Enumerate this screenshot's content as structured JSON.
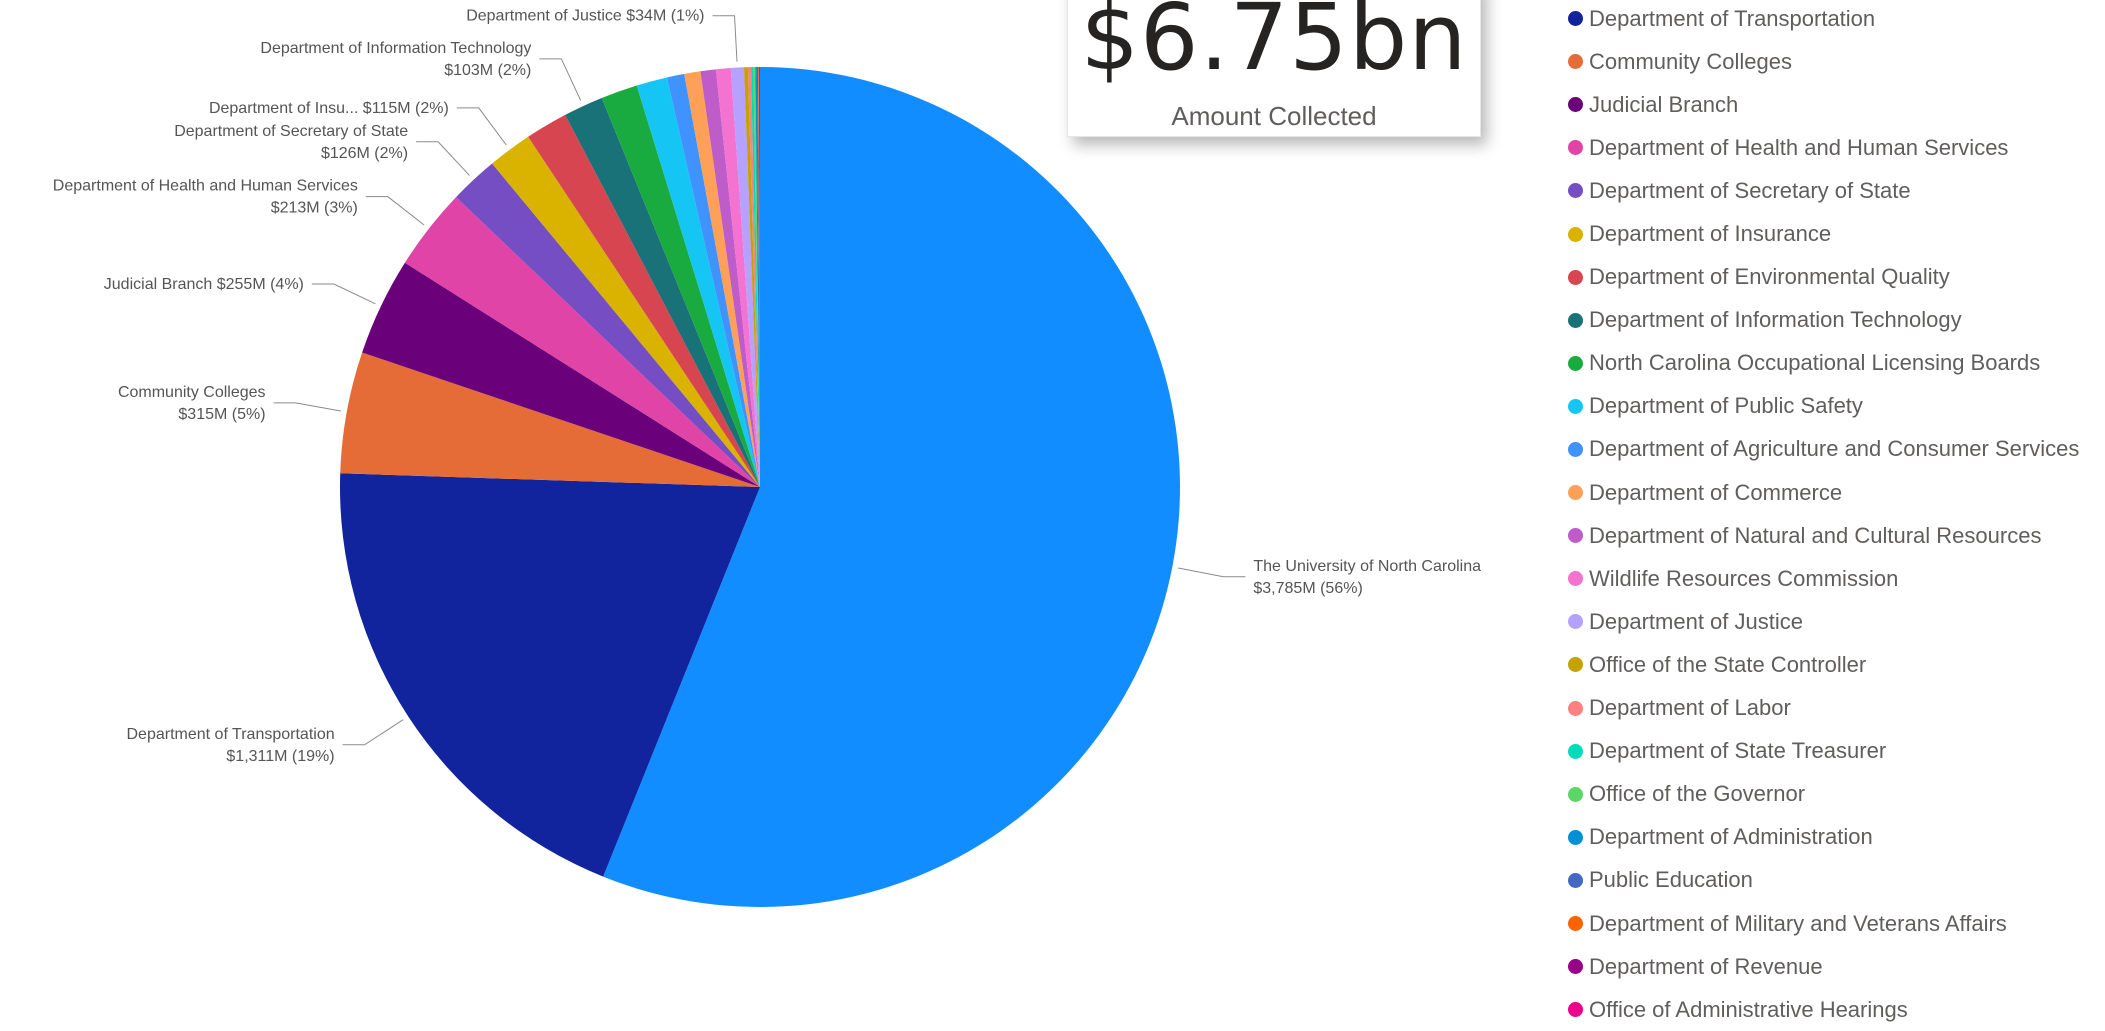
{
  "kpi": {
    "value": "$6.75bn",
    "label": "Amount Collected"
  },
  "legend": {
    "items": [
      {
        "label": "Department of Transportation",
        "color": "#12239E"
      },
      {
        "label": "Community Colleges",
        "color": "#E66C37"
      },
      {
        "label": "Judicial Branch",
        "color": "#6B007B"
      },
      {
        "label": "Department of Health and Human Services",
        "color": "#E044A7"
      },
      {
        "label": "Department of Secretary of State",
        "color": "#744EC2"
      },
      {
        "label": "Department of Insurance",
        "color": "#D9B300"
      },
      {
        "label": "Department of Environmental Quality",
        "color": "#D64550"
      },
      {
        "label": "Department of Information Technology",
        "color": "#197278"
      },
      {
        "label": "North Carolina Occupational Licensing Boards",
        "color": "#1AAB40"
      },
      {
        "label": "Department of Public Safety",
        "color": "#15C6F4"
      },
      {
        "label": "Department of Agriculture and Consumer Services",
        "color": "#4092FF"
      },
      {
        "label": "Department of Commerce",
        "color": "#FFA058"
      },
      {
        "label": "Department of Natural and Cultural Resources",
        "color": "#BE5DC9"
      },
      {
        "label": "Wildlife Resources Commission",
        "color": "#F472D0"
      },
      {
        "label": "Department of Justice",
        "color": "#B5A1FF"
      },
      {
        "label": "Office of the State Controller",
        "color": "#C4A200"
      },
      {
        "label": "Department of Labor",
        "color": "#FF8080"
      },
      {
        "label": "Department of State Treasurer",
        "color": "#00DBBC"
      },
      {
        "label": "Office of the Governor",
        "color": "#5BD667"
      },
      {
        "label": "Department of Administration",
        "color": "#0091D5"
      },
      {
        "label": "Public Education",
        "color": "#4668C5"
      },
      {
        "label": "Department of Military and Veterans Affairs",
        "color": "#FF6300"
      },
      {
        "label": "Department of Revenue",
        "color": "#99008A"
      },
      {
        "label": "Office of Administrative Hearings",
        "color": "#EC008C"
      }
    ]
  },
  "chart_data": {
    "type": "pie",
    "categories": [
      "The University of North Carolina",
      "Department of Transportation",
      "Community Colleges",
      "Judicial Branch",
      "Department of Health and Human Services",
      "Department of Secretary of State",
      "Department of Insurance",
      "Department of Environmental Quality",
      "Department of Information Technology",
      "North Carolina Occupational Licensing Boards",
      "Department of Public Safety",
      "Department of Agriculture and Consumer Services",
      "Department of Commerce",
      "Department of Natural and Cultural Resources",
      "Wildlife Resources Commission",
      "Department of Justice",
      "Office of the State Controller",
      "Department of Labor",
      "Department of State Treasurer",
      "Office of the Governor",
      "Department of Administration",
      "Public Education",
      "Department of Military and Veterans Affairs",
      "Department of Revenue",
      "Office of Administrative Hearings"
    ],
    "values": [
      3785,
      1311,
      315,
      255,
      213,
      126,
      115,
      110,
      103,
      95,
      80,
      45,
      42,
      40,
      38,
      34,
      10,
      8,
      6,
      5,
      4,
      3,
      2,
      2,
      1
    ],
    "colors": [
      "#118DFF",
      "#12239E",
      "#E66C37",
      "#6B007B",
      "#E044A7",
      "#744EC2",
      "#D9B300",
      "#D64550",
      "#197278",
      "#1AAB40",
      "#15C6F4",
      "#4092FF",
      "#FFA058",
      "#BE5DC9",
      "#F472D0",
      "#B5A1FF",
      "#C4A200",
      "#FF8080",
      "#00DBBC",
      "#5BD667",
      "#0091D5",
      "#4668C5",
      "#FF6300",
      "#99008A",
      "#EC008C"
    ],
    "unit": "$M",
    "data_labels": [
      {
        "index": 0,
        "lines": [
          "The University of North Carolina",
          "$3,785M (56%)"
        ],
        "side": "right"
      },
      {
        "index": 1,
        "lines": [
          "Department of Transportation",
          "$1,311M (19%)"
        ],
        "side": "left"
      },
      {
        "index": 2,
        "lines": [
          "Community Colleges",
          "$315M (5%)"
        ],
        "side": "left"
      },
      {
        "index": 3,
        "lines": [
          "Judicial Branch $255M (4%)"
        ],
        "side": "left"
      },
      {
        "index": 4,
        "lines": [
          "Department of Health and Human Services",
          "$213M (3%)"
        ],
        "side": "left"
      },
      {
        "index": 5,
        "lines": [
          "Department of Secretary of State",
          "$126M (2%)"
        ],
        "side": "left"
      },
      {
        "index": 6,
        "lines": [
          "Department of Insu... $115M (2%)"
        ],
        "side": "left"
      },
      {
        "index": 8,
        "lines": [
          "Department of Information Technology",
          "$103M (2%)"
        ],
        "side": "left"
      },
      {
        "index": 15,
        "lines": [
          "Department of Justice $34M (1%)"
        ],
        "side": "left"
      }
    ],
    "legend_position": "right"
  }
}
